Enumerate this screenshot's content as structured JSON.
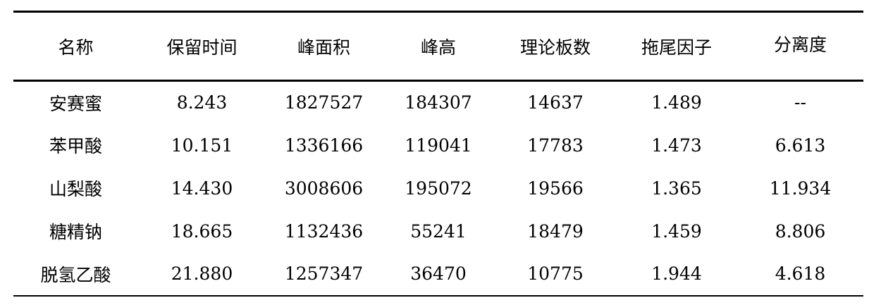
{
  "table": {
    "headers": [
      "名称",
      "保留时间",
      "峰面积",
      "峰高",
      "理论板数",
      "拖尾因子",
      "分离度"
    ],
    "rows": [
      [
        "安赛蜜",
        "8.243",
        "1827527",
        "184307",
        "14637",
        "1.489",
        "--"
      ],
      [
        "苯甲酸",
        "10.151",
        "1336166",
        "119041",
        "17783",
        "1.473",
        "6.613"
      ],
      [
        "山梨酸",
        "14.430",
        "3008606",
        "195072",
        "19566",
        "1.365",
        "11.934"
      ],
      [
        "糖精钠",
        "18.665",
        "1132436",
        "55241",
        "18479",
        "1.459",
        "8.806"
      ],
      [
        "脱氢乙酸",
        "21.880",
        "1257347",
        "36470",
        "10775",
        "1.944",
        "4.618"
      ]
    ]
  }
}
